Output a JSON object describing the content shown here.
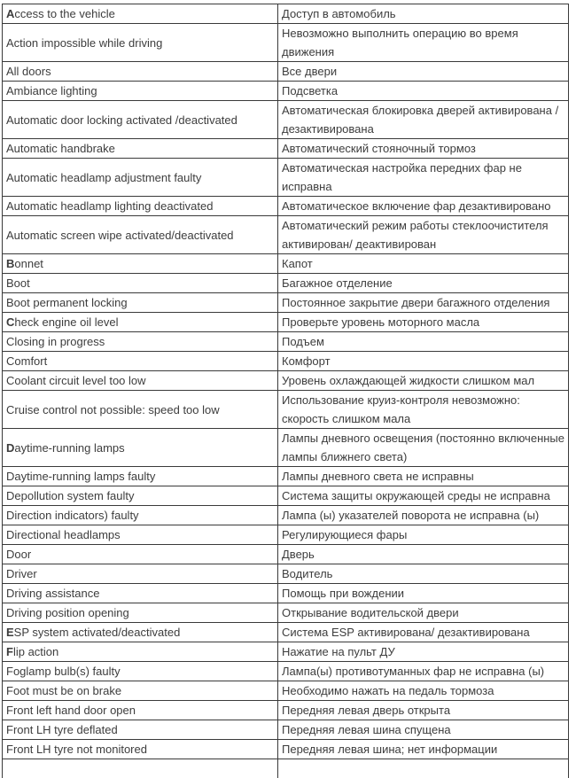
{
  "theme": {
    "page-bg": "#ffffff",
    "border-color": "#3a3a3a",
    "text-color": "#3d3d3d"
  },
  "glossary_table": {
    "rows": [
      {
        "en": "Access to the vehicle",
        "ru": "Доступ в автомобиль",
        "bold_initial": true
      },
      {
        "en": "Action impossible while driving",
        "ru": "Невозможно выполнить операцию во время движения",
        "bold_initial": false
      },
      {
        "en": "All doors",
        "ru": "Все двери",
        "bold_initial": false
      },
      {
        "en": "Ambiance lighting",
        "ru": "Подсветка",
        "bold_initial": false
      },
      {
        "en": "Automatic door locking activated /deactivated",
        "ru": "Автоматическая блокировка дверей активирована / дезактивирована",
        "bold_initial": false
      },
      {
        "en": "Automatic handbrake",
        "ru": "Автоматический стояночный тормоз",
        "bold_initial": false
      },
      {
        "en": "Automatic headlamp adjustment faulty",
        "ru": "Автоматическая настройка передних фар не исправна",
        "bold_initial": false
      },
      {
        "en": "Automatic headlamp lighting deactivated",
        "ru": "Автоматическое включение фар дезактивировано",
        "bold_initial": false
      },
      {
        "en": "Automatic screen wipe activated/deactivated",
        "ru": "Автоматический режим работы стеклоочистителя активирован/ деактивирован",
        "bold_initial": false
      },
      {
        "en": "Bonnet",
        "ru": "Капот",
        "bold_initial": true
      },
      {
        "en": "Boot",
        "ru": "Багажное отделение",
        "bold_initial": false
      },
      {
        "en": "Boot permanent locking",
        "ru": "Постоянное закрытие двери багажного отделения",
        "bold_initial": false
      },
      {
        "en": "Check engine oil level",
        "ru": "Проверьте уровень моторного масла",
        "bold_initial": true
      },
      {
        "en": "Closing in progress",
        "ru": "Подъем",
        "bold_initial": false
      },
      {
        "en": "Comfort",
        "ru": "Комфорт",
        "bold_initial": false
      },
      {
        "en": "Coolant circuit level too low",
        "ru": "Уровень охлаждающей жидкости слишком мал",
        "bold_initial": false
      },
      {
        "en": "Cruise control not possible: speed too low",
        "ru": "Использование круиз-контроля невозможно: скорость слишком мала",
        "bold_initial": false
      },
      {
        "en": "Daytime-running lamps",
        "ru": "Лампы дневного освещения (постоянно включенные лампы ближнего света)",
        "bold_initial": true
      },
      {
        "en": "Daytime-running lamps faulty",
        "ru": "Лампы дневного света не исправны",
        "bold_initial": false
      },
      {
        "en": "Depollution system faulty",
        "ru": "Система защиты окружающей среды не исправна",
        "bold_initial": false
      },
      {
        "en": "Direction indicators) faulty",
        "ru": "Лампа (ы) указателей поворота не исправна (ы)",
        "bold_initial": false
      },
      {
        "en": "Directional headlamps",
        "ru": "Регулирующиеся фары",
        "bold_initial": false
      },
      {
        "en": "Door",
        "ru": "Дверь",
        "bold_initial": false
      },
      {
        "en": "Driver",
        "ru": "Водитель",
        "bold_initial": false
      },
      {
        "en": "Driving assistance",
        "ru": "Помощь при вождении",
        "bold_initial": false
      },
      {
        "en": "Driving position opening",
        "ru": "Открывание водительской двери",
        "bold_initial": false
      },
      {
        "en": "ESP system activated/deactivated",
        "ru": "Система ESP активирована/ дезактивирована",
        "bold_initial": true
      },
      {
        "en": "Flip action",
        "ru": "Нажатие на пульт ДУ",
        "bold_initial": true
      },
      {
        "en": "Foglamp bulb(s) faulty",
        "ru": "Лампа(ы) противотуманных фар не исправна (ы)",
        "bold_initial": false
      },
      {
        "en": "Foot must be on brake",
        "ru": "Необходимо нажать на педаль тормоза",
        "bold_initial": false
      },
      {
        "en": "Front left hand door open",
        "ru": "Передняя левая дверь открыта",
        "bold_initial": false
      },
      {
        "en": "Front LH tyre deflated",
        "ru": "Передняя левая шина спущена",
        "bold_initial": false
      },
      {
        "en": "Front LH tyre not monitored",
        "ru": "Передняя левая шина; нет информации",
        "bold_initial": false
      }
    ]
  }
}
